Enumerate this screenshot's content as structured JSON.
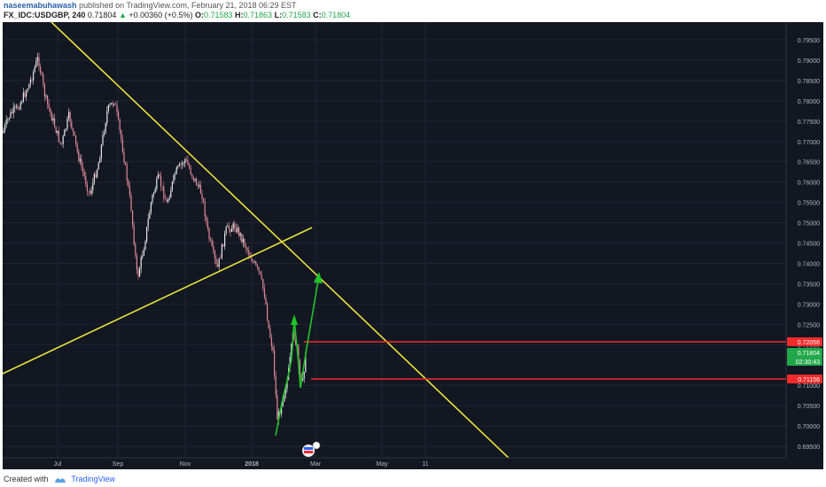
{
  "header": {
    "author": "naseemabuhawash",
    "published_text": "published on TradingView.com, February 21, 2018 06:29 EST",
    "symbol": "FX_IDC:USDGBP, 240",
    "last": "0.71804",
    "change_arrow": "▲",
    "change": "+0.00360 (+0.5%)",
    "open_label": "O:",
    "open": "0.71583",
    "high_label": "H:",
    "high": "0.71863",
    "low_label": "L:",
    "low": "0.71583",
    "close_label": "C:",
    "close": "0.71804"
  },
  "price_axis": {
    "ticks": [
      "0.79500",
      "0.79000",
      "0.78500",
      "0.78000",
      "0.77500",
      "0.77000",
      "0.76500",
      "0.76000",
      "0.75500",
      "0.75000",
      "0.74500",
      "0.74000",
      "0.73500",
      "0.73000",
      "0.72500",
      "0.72000",
      "0.71000",
      "0.70500",
      "0.70000",
      "0.69500"
    ],
    "tick_values": [
      0.795,
      0.79,
      0.785,
      0.78,
      0.775,
      0.77,
      0.765,
      0.76,
      0.755,
      0.75,
      0.745,
      0.74,
      0.735,
      0.73,
      0.725,
      0.72,
      0.71,
      0.705,
      0.7,
      0.695
    ],
    "badges": [
      {
        "label": "0.72056",
        "value": 0.72056,
        "color": "#ef2b2b"
      },
      {
        "label": "0.71804",
        "value": 0.71804,
        "color": "#22a84a"
      },
      {
        "label": "02:30:43",
        "color": "#22a84a"
      },
      {
        "label": "0.71156",
        "value": 0.71156,
        "color": "#ef2b2b"
      }
    ]
  },
  "time_axis": {
    "labels": [
      "Jul",
      "Sep",
      "Nov",
      "2018",
      "Mar",
      "May",
      "11"
    ]
  },
  "colors": {
    "background": "#131722",
    "trendline": "#e8e13b",
    "arrow": "#22c42a",
    "level": "#ef2b2b",
    "candle_up": "#e6e6e6",
    "candle_down": "#e08a95"
  },
  "footer": {
    "created_with": "Created with",
    "brand": "TradingView"
  }
}
